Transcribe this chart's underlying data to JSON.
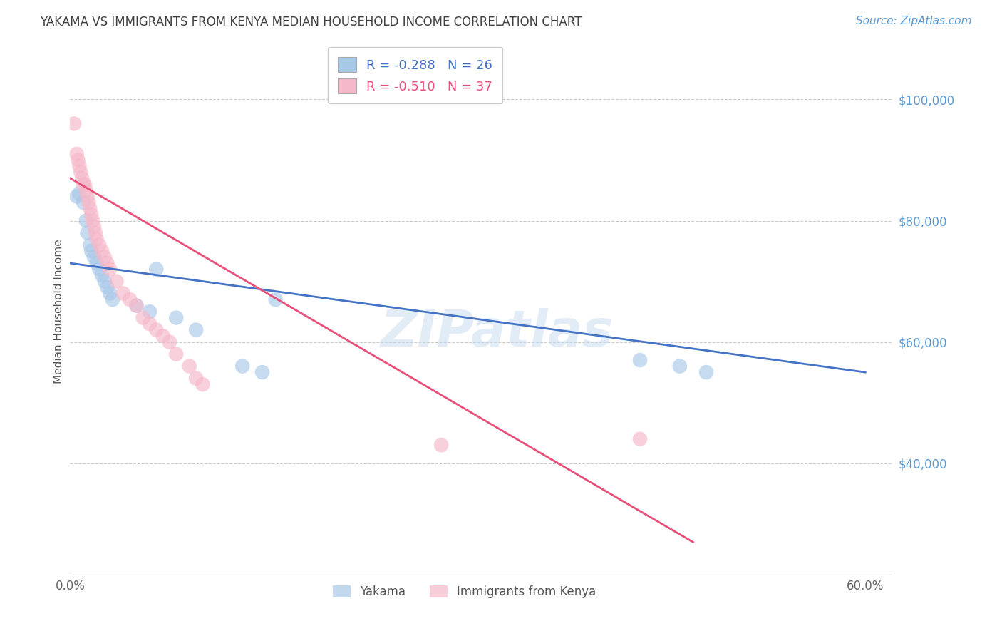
{
  "title": "YAKAMA VS IMMIGRANTS FROM KENYA MEDIAN HOUSEHOLD INCOME CORRELATION CHART",
  "source": "Source: ZipAtlas.com",
  "ylabel": "Median Household Income",
  "right_ytick_labels": [
    "$100,000",
    "$80,000",
    "$60,000",
    "$40,000"
  ],
  "right_ytick_values": [
    100000,
    80000,
    60000,
    40000
  ],
  "ylim": [
    22000,
    108000
  ],
  "xlim": [
    0.0,
    0.62
  ],
  "watermark": "ZIPatlas",
  "legend_blue_r": "-0.288",
  "legend_blue_n": "26",
  "legend_pink_r": "-0.510",
  "legend_pink_n": "37",
  "legend_blue_label": "Yakama",
  "legend_pink_label": "Immigrants from Kenya",
  "blue_color": "#a8c8e8",
  "pink_color": "#f5b8c8",
  "blue_line_color": "#4472c4",
  "pink_line_color": "#e8507a",
  "grid_color": "#cccccc",
  "right_tick_color": "#5b9bd5",
  "title_color": "#404040",
  "source_color": "#5b9bd5",
  "yakama_x": [
    0.005,
    0.007,
    0.01,
    0.012,
    0.013,
    0.015,
    0.016,
    0.018,
    0.02,
    0.022,
    0.024,
    0.026,
    0.028,
    0.03,
    0.032,
    0.05,
    0.06,
    0.065,
    0.08,
    0.095,
    0.13,
    0.145,
    0.155,
    0.43,
    0.46,
    0.48
  ],
  "yakama_y": [
    84000,
    84500,
    83000,
    80000,
    78000,
    76000,
    75000,
    74000,
    73000,
    72000,
    71000,
    70000,
    69000,
    68000,
    67000,
    66000,
    65000,
    72000,
    64000,
    62000,
    56000,
    55000,
    67000,
    57000,
    56000,
    55000
  ],
  "kenya_x": [
    0.003,
    0.005,
    0.006,
    0.007,
    0.008,
    0.009,
    0.01,
    0.011,
    0.012,
    0.013,
    0.014,
    0.015,
    0.016,
    0.017,
    0.018,
    0.019,
    0.02,
    0.022,
    0.024,
    0.026,
    0.028,
    0.03,
    0.035,
    0.04,
    0.045,
    0.05,
    0.055,
    0.06,
    0.065,
    0.07,
    0.075,
    0.08,
    0.09,
    0.095,
    0.1,
    0.28,
    0.43
  ],
  "kenya_y": [
    96000,
    91000,
    90000,
    89000,
    88000,
    87000,
    86000,
    86000,
    85000,
    84000,
    83000,
    82000,
    81000,
    80000,
    79000,
    78000,
    77000,
    76000,
    75000,
    74000,
    73000,
    72000,
    70000,
    68000,
    67000,
    66000,
    64000,
    63000,
    62000,
    61000,
    60000,
    58000,
    56000,
    54000,
    53000,
    43000,
    44000
  ],
  "blue_trend_x": [
    0.0,
    0.6
  ],
  "blue_trend_y": [
    73000,
    55000
  ],
  "pink_trend_x": [
    0.0,
    0.47
  ],
  "pink_trend_y": [
    87000,
    27000
  ],
  "bg_color": "#ffffff"
}
